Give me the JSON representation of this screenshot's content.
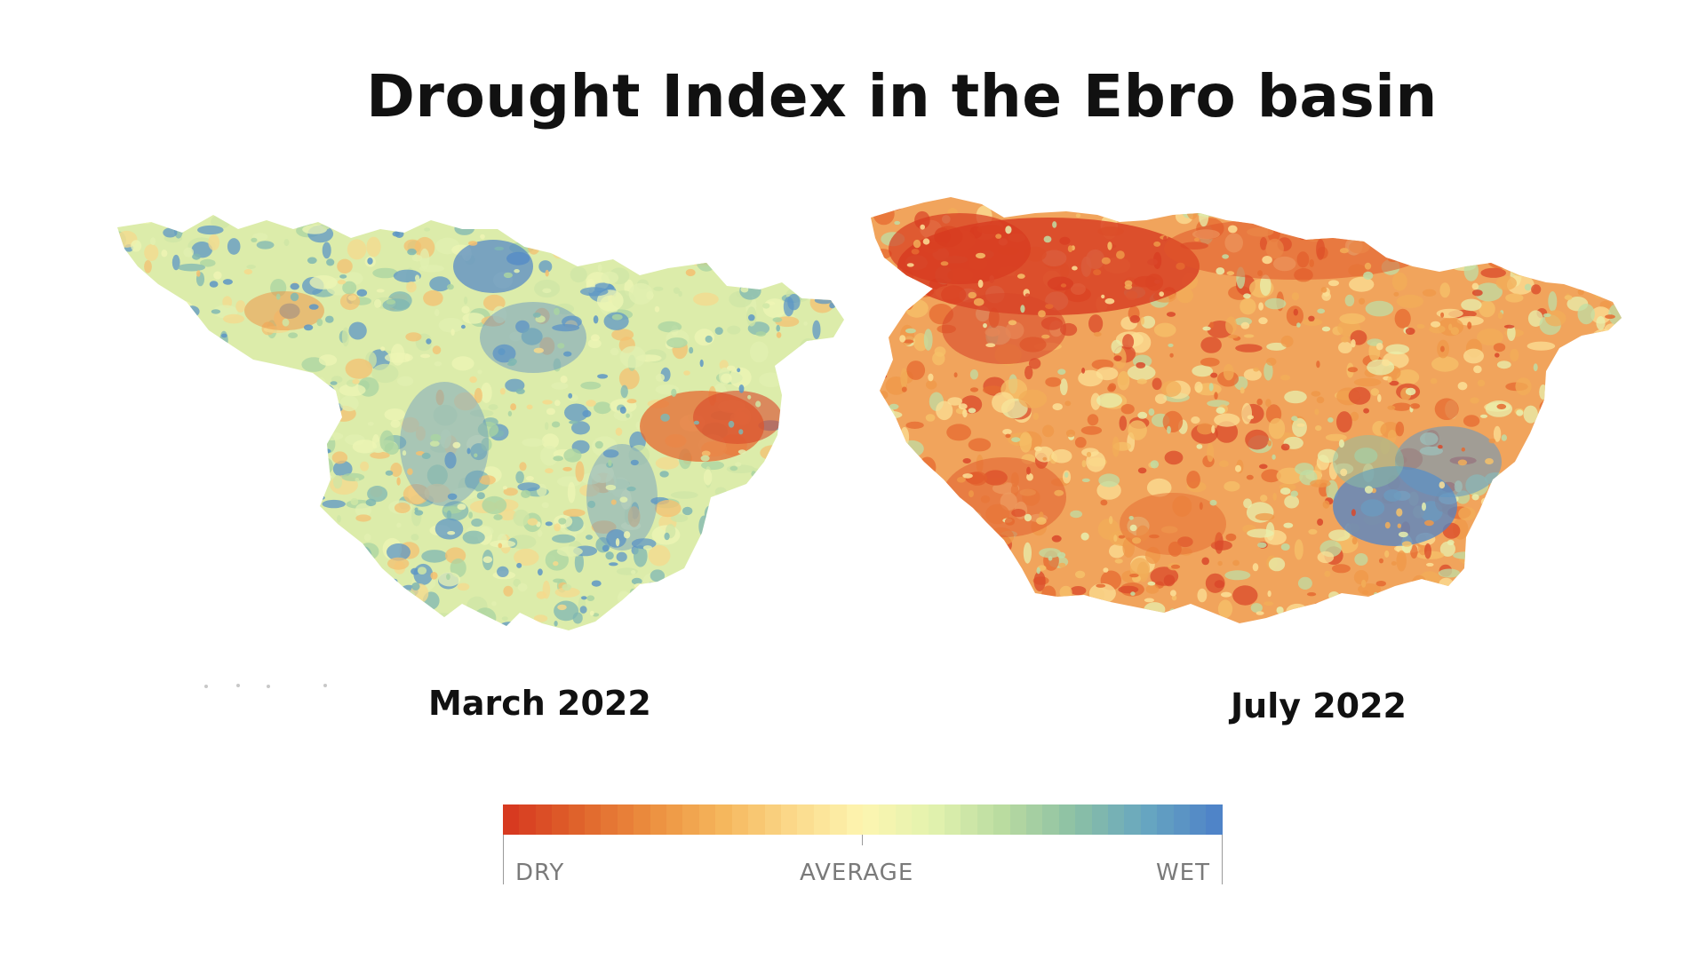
{
  "title": "Drought Index in the Ebro basin",
  "maps": [
    {
      "caption": "March 2022",
      "dominant_condition": "average-to-wet",
      "base_color": "#dcecaa"
    },
    {
      "caption": "July 2022",
      "dominant_condition": "dry",
      "base_color": "#f1a45c"
    }
  ],
  "legend": {
    "dry_label": "DRY",
    "average_label": "AVERAGE",
    "wet_label": "WET",
    "colors": [
      "#d73a20",
      "#e0652c",
      "#ec8f3f",
      "#f5b65c",
      "#fbd98a",
      "#fdf5b0",
      "#e2f2ae",
      "#b9dba0",
      "#8cc0a4",
      "#68a7c0",
      "#4f84c8"
    ]
  }
}
